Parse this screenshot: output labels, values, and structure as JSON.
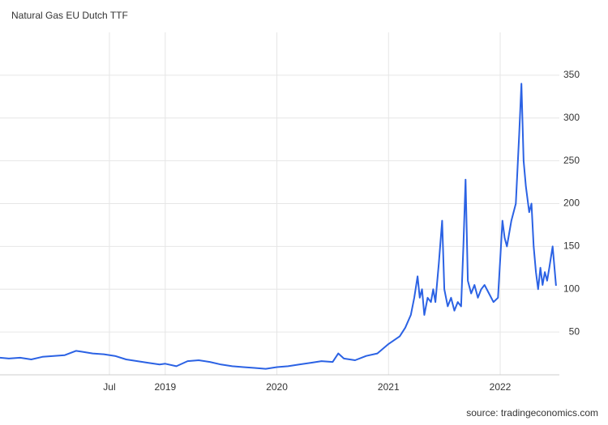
{
  "chart_data": {
    "type": "line",
    "title": "Natural Gas EU Dutch TTF",
    "source": "source: tradingeconomics.com",
    "x": [
      2017.52,
      2017.6,
      2017.7,
      2017.8,
      2017.9,
      2018.0,
      2018.1,
      2018.2,
      2018.25,
      2018.35,
      2018.45,
      2018.55,
      2018.65,
      2018.75,
      2018.85,
      2018.95,
      2019.0,
      2019.1,
      2019.2,
      2019.3,
      2019.4,
      2019.5,
      2019.6,
      2019.7,
      2019.8,
      2019.9,
      2020.0,
      2020.1,
      2020.2,
      2020.3,
      2020.4,
      2020.5,
      2020.55,
      2020.6,
      2020.7,
      2020.8,
      2020.9,
      2021.0,
      2021.1,
      2021.15,
      2021.2,
      2021.23,
      2021.26,
      2021.28,
      2021.3,
      2021.32,
      2021.35,
      2021.38,
      2021.4,
      2021.42,
      2021.45,
      2021.48,
      2021.5,
      2021.53,
      2021.56,
      2021.59,
      2021.62,
      2021.65,
      2021.67,
      2021.69,
      2021.71,
      2021.74,
      2021.77,
      2021.8,
      2021.83,
      2021.86,
      2021.9,
      2021.94,
      2021.98,
      2022.02,
      2022.04,
      2022.06,
      2022.1,
      2022.14,
      2022.17,
      2022.19,
      2022.21,
      2022.23,
      2022.26,
      2022.28,
      2022.3,
      2022.32,
      2022.34,
      2022.36,
      2022.38,
      2022.4,
      2022.42,
      2022.44,
      2022.47,
      2022.5
    ],
    "values": [
      20,
      19,
      20,
      18,
      21,
      22,
      23,
      28,
      27,
      25,
      24,
      22,
      18,
      16,
      14,
      12,
      13,
      10,
      16,
      17,
      15,
      12,
      10,
      9,
      8,
      7,
      9,
      10,
      12,
      14,
      16,
      15,
      25,
      19,
      17,
      22,
      25,
      36,
      45,
      55,
      70,
      90,
      115,
      90,
      100,
      70,
      90,
      85,
      100,
      85,
      130,
      180,
      100,
      80,
      90,
      75,
      85,
      80,
      150,
      228,
      110,
      95,
      105,
      90,
      100,
      105,
      95,
      85,
      90,
      180,
      160,
      150,
      180,
      200,
      280,
      340,
      250,
      220,
      190,
      200,
      150,
      120,
      100,
      125,
      105,
      120,
      110,
      125,
      150,
      104
    ],
    "color": "#2b62e4",
    "xlim": [
      2017.52,
      2022.53
    ],
    "xticks": [
      {
        "value": 2018.5,
        "label": "Jul"
      },
      2019,
      2020,
      2021,
      2022
    ],
    "ylim": [
      0,
      400
    ],
    "yticks": [
      50,
      100,
      150,
      200,
      250,
      300,
      350
    ],
    "grid": true
  }
}
